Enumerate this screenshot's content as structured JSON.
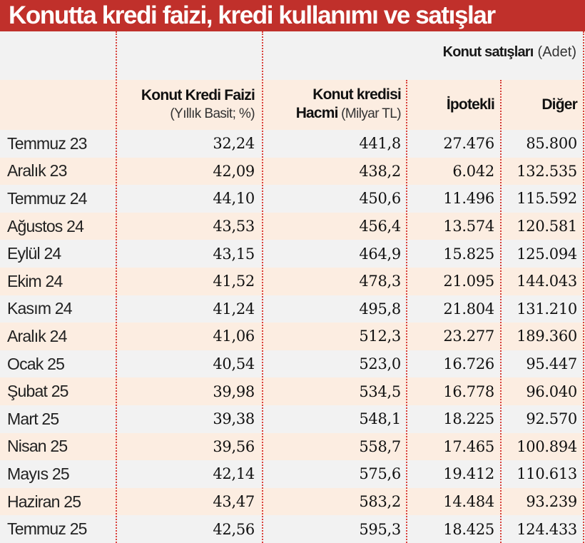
{
  "title": "Konutta kredi faizi, kredi kullanımı ve satışlar",
  "colors": {
    "title_bg": "#c0302b",
    "title_text": "#ffffff",
    "row_shade": "#fcede1",
    "row_plain": "#f2f2f2",
    "divider": "#d9403a"
  },
  "header": {
    "group": {
      "bold": "Konut satışları",
      "light": "(Adet)"
    },
    "col1": {
      "bold": "Konut Kredi Faizi",
      "light": "(Yıllık Basit; %)"
    },
    "col2": {
      "bold_line1": "Konut kredisi",
      "bold_line2": "Hacmi",
      "light": "(Milyar TL)"
    },
    "col3": {
      "bold": "İpotekli"
    },
    "col4": {
      "bold": "Diğer"
    }
  },
  "rows": [
    {
      "period": "Temmuz 23",
      "rate": "32,24",
      "volume": "441,8",
      "mortgaged": "27.476",
      "other": "85.800"
    },
    {
      "period": "Aralık 23",
      "rate": "42,09",
      "volume": "438,2",
      "mortgaged": "6.042",
      "other": "132.535"
    },
    {
      "period": "Temmuz 24",
      "rate": "44,10",
      "volume": "450,6",
      "mortgaged": "11.496",
      "other": "115.592"
    },
    {
      "period": "Ağustos 24",
      "rate": "43,53",
      "volume": "456,4",
      "mortgaged": "13.574",
      "other": "120.581"
    },
    {
      "period": "Eylül 24",
      "rate": "43,15",
      "volume": "464,9",
      "mortgaged": "15.825",
      "other": "125.094"
    },
    {
      "period": "Ekim 24",
      "rate": "41,52",
      "volume": "478,3",
      "mortgaged": "21.095",
      "other": "144.043"
    },
    {
      "period": "Kasım 24",
      "rate": "41,24",
      "volume": "495,8",
      "mortgaged": "21.804",
      "other": "131.210"
    },
    {
      "period": "Aralık 24",
      "rate": "41,06",
      "volume": "512,3",
      "mortgaged": "23.277",
      "other": "189.360"
    },
    {
      "period": "Ocak 25",
      "rate": "40,54",
      "volume": "523,0",
      "mortgaged": "16.726",
      "other": "95.447"
    },
    {
      "period": "Şubat 25",
      "rate": "39,98",
      "volume": "534,5",
      "mortgaged": "16.778",
      "other": "96.040"
    },
    {
      "period": "Mart 25",
      "rate": "39,38",
      "volume": "548,1",
      "mortgaged": "18.225",
      "other": "92.570"
    },
    {
      "period": "Nisan 25",
      "rate": "39,56",
      "volume": "558,7",
      "mortgaged": "17.465",
      "other": "100.894"
    },
    {
      "period": "Mayıs 25",
      "rate": "42,14",
      "volume": "575,6",
      "mortgaged": "19.412",
      "other": "110.613"
    },
    {
      "period": "Haziran 25",
      "rate": "43,47",
      "volume": "583,2",
      "mortgaged": "14.484",
      "other": "93.239"
    },
    {
      "period": "Temmuz 25",
      "rate": "42,56",
      "volume": "595,3",
      "mortgaged": "18.425",
      "other": "124.433"
    }
  ]
}
